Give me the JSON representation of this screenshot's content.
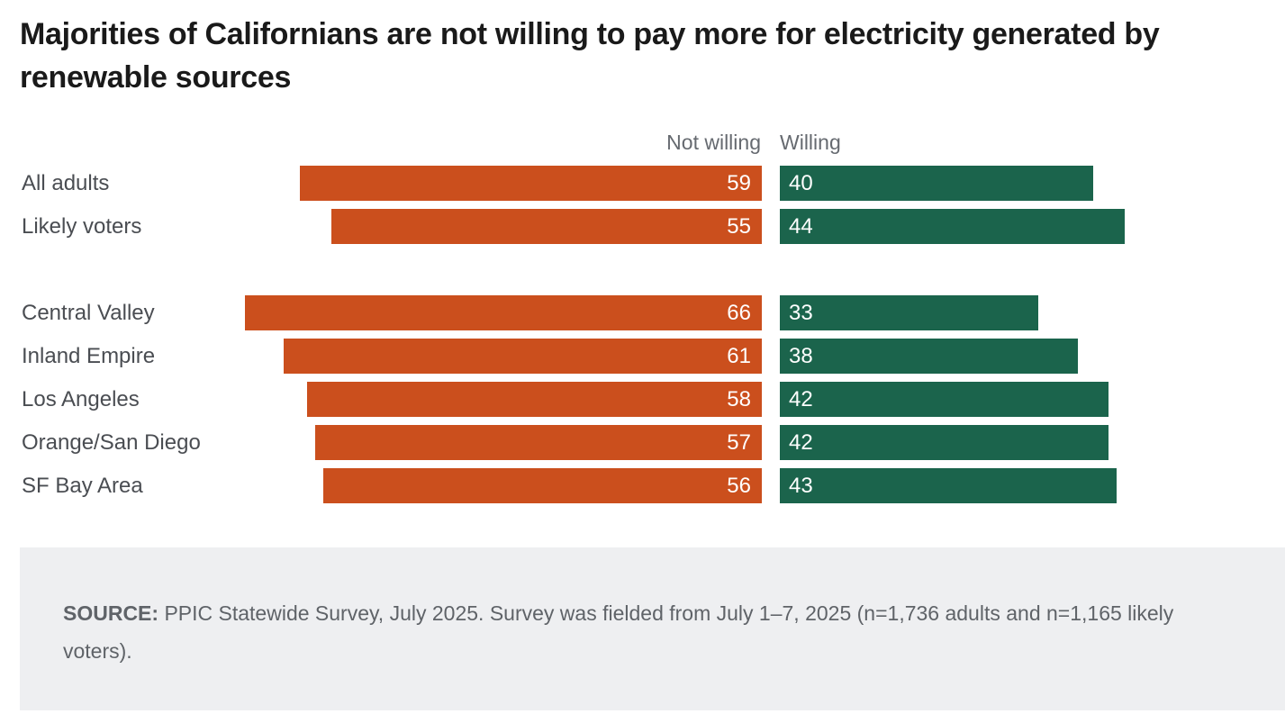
{
  "colors": {
    "not_willing": "#cb4f1d",
    "willing": "#1b644c",
    "source_bg": "#eeeff1"
  },
  "chart_data": {
    "type": "bar",
    "orientation": "horizontal-diverging",
    "title": "Majorities of Californians are not willing to pay more for electricity generated by renewable sources",
    "categories": [
      "All adults",
      "Likely voters",
      "Central Valley",
      "Inland Empire",
      "Los Angeles",
      "Orange/San Diego",
      "SF Bay Area"
    ],
    "series": [
      {
        "name": "Not willing",
        "values": [
          59,
          55,
          66,
          61,
          58,
          57,
          56
        ]
      },
      {
        "name": "Willing",
        "values": [
          40,
          44,
          33,
          38,
          42,
          42,
          43
        ]
      }
    ],
    "groups_gap_after_index": 1,
    "unit": "percent"
  },
  "source": {
    "label": "SOURCE:",
    "text": " PPIC Statewide Survey, July 2025. Survey was fielded from July 1–7, 2025 (n=1,736 adults and n=1,165 likely voters)."
  }
}
